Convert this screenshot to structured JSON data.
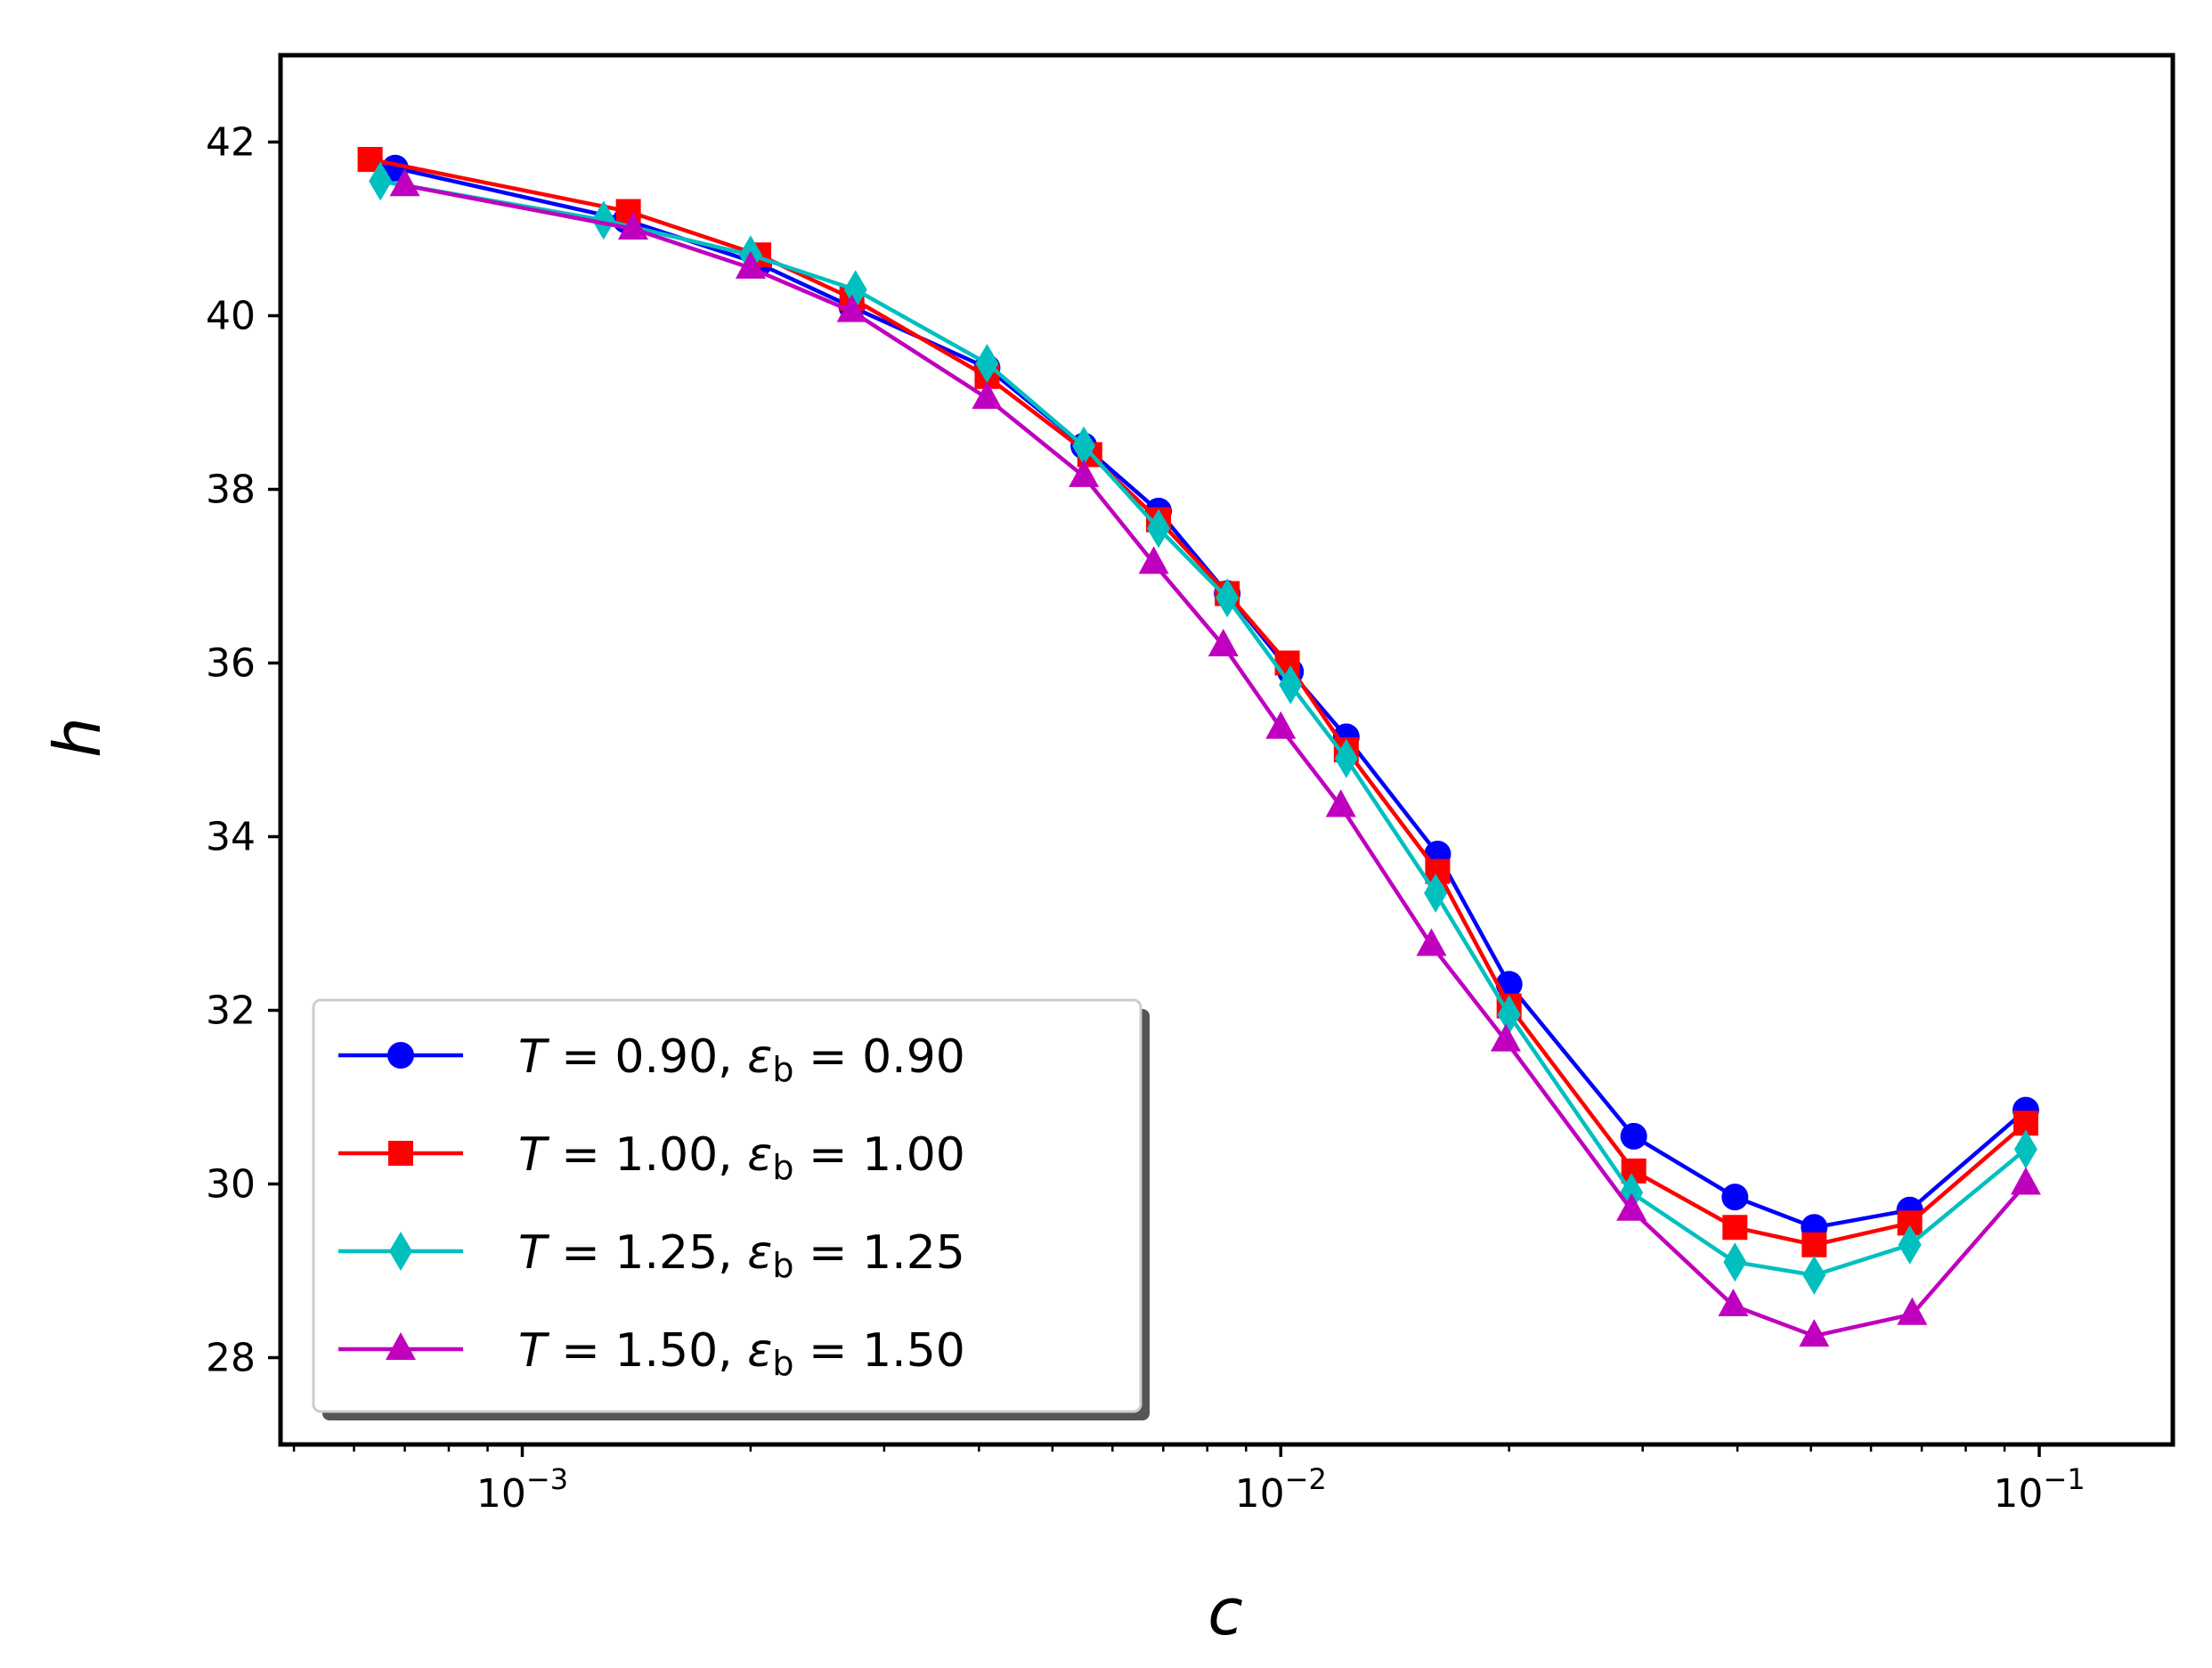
{
  "chart_data": {
    "type": "line",
    "title": "",
    "xlabel": "c",
    "ylabel": "h",
    "xscale": "log",
    "xlim": [
      0.00048,
      0.15
    ],
    "ylim": [
      27.0,
      43.0
    ],
    "grid": false,
    "legend_position": "lower-left",
    "x_ticks": [
      {
        "value": 0.001,
        "base": "10",
        "exp": "−3"
      },
      {
        "value": 0.01,
        "base": "10",
        "exp": "−2"
      },
      {
        "value": 0.1,
        "base": "10",
        "exp": "−1"
      }
    ],
    "y_ticks": [
      {
        "value": 28,
        "label": "28"
      },
      {
        "value": 30,
        "label": "30"
      },
      {
        "value": 32,
        "label": "32"
      },
      {
        "value": 34,
        "label": "34"
      },
      {
        "value": 36,
        "label": "36"
      },
      {
        "value": 38,
        "label": "38"
      },
      {
        "value": 40,
        "label": "40"
      },
      {
        "value": 42,
        "label": "42"
      }
    ],
    "series": [
      {
        "name": "T = 0.90, εb = 0.90",
        "legend": {
          "T": "0.90",
          "eps": "0.90"
        },
        "color": "#0000ff",
        "marker": "circle",
        "x": [
          0.00068,
          0.00137,
          0.00205,
          0.00272,
          0.0041,
          0.0055,
          0.0069,
          0.0085,
          0.0103,
          0.0122,
          0.0161,
          0.02,
          0.0292,
          0.0397,
          0.0505,
          0.0675,
          0.096
        ],
        "y": [
          41.7,
          41.1,
          40.6,
          40.1,
          39.4,
          38.5,
          37.75,
          36.8,
          35.9,
          35.15,
          33.8,
          32.3,
          30.55,
          29.85,
          29.5,
          29.7,
          30.85
        ]
      },
      {
        "name": "T = 1.00, εb = 1.00",
        "legend": {
          "T": "1.00",
          "eps": "1.00"
        },
        "color": "#ff0000",
        "marker": "square",
        "x": [
          0.00063,
          0.00138,
          0.00205,
          0.00272,
          0.0041,
          0.0056,
          0.0069,
          0.0085,
          0.0102,
          0.0122,
          0.0161,
          0.02,
          0.0292,
          0.0397,
          0.0505,
          0.0675,
          0.096
        ],
        "y": [
          41.8,
          41.2,
          40.7,
          40.2,
          39.3,
          38.4,
          37.65,
          36.8,
          36.0,
          35.0,
          33.6,
          32.05,
          30.15,
          29.5,
          29.3,
          29.55,
          30.7
        ]
      },
      {
        "name": "T = 1.25, εb = 1.25",
        "legend": {
          "T": "1.25",
          "eps": "1.25"
        },
        "color": "#00bfbf",
        "marker": "thin_diamond",
        "x": [
          0.00065,
          0.00128,
          0.002,
          0.00275,
          0.0041,
          0.0055,
          0.0069,
          0.0085,
          0.0103,
          0.0122,
          0.016,
          0.02,
          0.029,
          0.0397,
          0.0505,
          0.0675,
          0.096
        ],
        "y": [
          41.55,
          41.1,
          40.7,
          40.3,
          39.45,
          38.5,
          37.55,
          36.75,
          35.75,
          34.9,
          33.35,
          31.95,
          29.9,
          29.1,
          28.95,
          29.3,
          30.4
        ]
      },
      {
        "name": "T = 1.50, εb = 1.50",
        "legend": {
          "T": "1.50",
          "eps": "1.50"
        },
        "color": "#bf00bf",
        "marker": "triangle",
        "x": [
          0.0007,
          0.0014,
          0.002,
          0.00272,
          0.0041,
          0.0055,
          0.0068,
          0.0084,
          0.01,
          0.012,
          0.0158,
          0.0198,
          0.029,
          0.0395,
          0.0505,
          0.068,
          0.096
        ],
        "y": [
          41.5,
          41.0,
          40.55,
          40.05,
          39.05,
          38.15,
          37.15,
          36.2,
          35.25,
          34.35,
          32.75,
          31.65,
          29.7,
          28.6,
          28.25,
          28.5,
          30.0
        ]
      }
    ]
  }
}
